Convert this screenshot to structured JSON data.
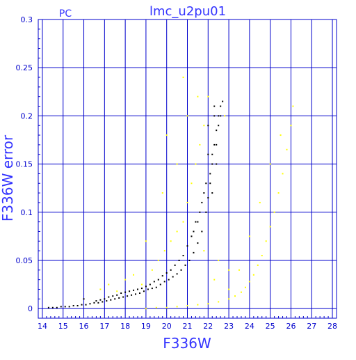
{
  "chart_data": {
    "type": "scatter",
    "title": "lmc_u2pu01",
    "corner_label": "PC",
    "xlabel": "F336W",
    "ylabel": "F336W error",
    "xlim": [
      13.8,
      28.2
    ],
    "ylim": [
      -0.01,
      0.3
    ],
    "x_ticks": [
      "14",
      "15",
      "16",
      "17",
      "18",
      "19",
      "20",
      "21",
      "22",
      "23",
      "24",
      "25",
      "26",
      "27",
      "28"
    ],
    "y_ticks": [
      "0",
      "0.05",
      "0.1",
      "0.15",
      "0.2",
      "0.25",
      "0.3"
    ],
    "grid": true,
    "colors": {
      "axes": "#0000cc",
      "grid": "#0000cc",
      "text": "#3333ff",
      "black_series": "#000000",
      "yellow_series": "#ffff00"
    },
    "series": [
      {
        "color": "#000000",
        "points": [
          [
            14.3,
            0.001
          ],
          [
            14.5,
            0.001
          ],
          [
            14.7,
            0.001
          ],
          [
            14.9,
            0.002
          ],
          [
            15.1,
            0.002
          ],
          [
            15.3,
            0.002
          ],
          [
            15.5,
            0.003
          ],
          [
            15.7,
            0.003
          ],
          [
            15.9,
            0.004
          ],
          [
            16.0,
            0.01
          ],
          [
            16.1,
            0.004
          ],
          [
            16.3,
            0.005
          ],
          [
            16.5,
            0.006
          ],
          [
            16.7,
            0.006
          ],
          [
            16.9,
            0.007
          ],
          [
            17.1,
            0.008
          ],
          [
            17.3,
            0.009
          ],
          [
            17.5,
            0.01
          ],
          [
            17.7,
            0.011
          ],
          [
            17.9,
            0.012
          ],
          [
            18.1,
            0.013
          ],
          [
            18.3,
            0.014
          ],
          [
            18.5,
            0.015
          ],
          [
            18.7,
            0.016
          ],
          [
            18.9,
            0.018
          ],
          [
            19.1,
            0.02
          ],
          [
            19.3,
            0.021
          ],
          [
            19.5,
            0.022
          ],
          [
            19.7,
            0.025
          ],
          [
            19.9,
            0.028
          ],
          [
            20.1,
            0.03
          ],
          [
            20.3,
            0.033
          ],
          [
            20.5,
            0.036
          ],
          [
            20.7,
            0.04
          ],
          [
            20.9,
            0.045
          ],
          [
            21.1,
            0.05
          ],
          [
            21.3,
            0.058
          ],
          [
            21.5,
            0.068
          ],
          [
            21.7,
            0.08
          ],
          [
            21.9,
            0.1
          ],
          [
            22.0,
            0.115
          ],
          [
            22.1,
            0.13
          ],
          [
            22.2,
            0.15
          ],
          [
            22.3,
            0.17
          ],
          [
            22.4,
            0.185
          ],
          [
            22.5,
            0.2
          ],
          [
            22.6,
            0.21
          ],
          [
            22.7,
            0.215
          ],
          [
            22.3,
            0.2
          ],
          [
            22.0,
            0.19
          ],
          [
            21.8,
            0.12
          ],
          [
            21.6,
            0.1
          ],
          [
            21.4,
            0.09
          ],
          [
            21.2,
            0.075
          ],
          [
            21.0,
            0.065
          ],
          [
            20.8,
            0.055
          ],
          [
            20.6,
            0.05
          ],
          [
            20.4,
            0.045
          ],
          [
            20.2,
            0.04
          ],
          [
            20.0,
            0.037
          ],
          [
            19.8,
            0.034
          ],
          [
            19.6,
            0.03
          ],
          [
            19.4,
            0.028
          ],
          [
            19.2,
            0.025
          ],
          [
            19.0,
            0.023
          ],
          [
            18.8,
            0.021
          ],
          [
            18.6,
            0.02
          ],
          [
            18.4,
            0.019
          ],
          [
            18.2,
            0.018
          ],
          [
            18.0,
            0.017
          ],
          [
            17.8,
            0.016
          ],
          [
            17.6,
            0.014
          ],
          [
            17.4,
            0.013
          ],
          [
            17.2,
            0.012
          ],
          [
            17.0,
            0.01
          ],
          [
            16.8,
            0.009
          ],
          [
            16.6,
            0.008
          ],
          [
            22.2,
            0.16
          ],
          [
            22.4,
            0.17
          ],
          [
            22.5,
            0.19
          ],
          [
            22.1,
            0.14
          ],
          [
            21.9,
            0.13
          ],
          [
            22.0,
            0.16
          ],
          [
            22.3,
            0.21
          ],
          [
            22.6,
            0.2
          ],
          [
            22.4,
            0.15
          ],
          [
            22.2,
            0.12
          ],
          [
            21.7,
            0.11
          ],
          [
            21.5,
            0.09
          ],
          [
            21.3,
            0.08
          ]
        ]
      },
      {
        "color": "#ffff00",
        "points": [
          [
            16.8,
            0.02
          ],
          [
            17.2,
            0.025
          ],
          [
            17.6,
            0.018
          ],
          [
            18.0,
            0.03
          ],
          [
            18.4,
            0.035
          ],
          [
            18.8,
            0.025
          ],
          [
            19.0,
            0.07
          ],
          [
            19.3,
            0.04
          ],
          [
            19.6,
            0.05
          ],
          [
            19.9,
            0.06
          ],
          [
            20.2,
            0.07
          ],
          [
            20.5,
            0.08
          ],
          [
            20.8,
            0.09
          ],
          [
            21.0,
            0.11
          ],
          [
            21.2,
            0.13
          ],
          [
            21.4,
            0.15
          ],
          [
            21.6,
            0.17
          ],
          [
            21.8,
            0.19
          ],
          [
            20.0,
            0.18
          ],
          [
            21.0,
            0.2
          ],
          [
            19.0,
            0.0
          ],
          [
            19.5,
            0.001
          ],
          [
            20.0,
            0.001
          ],
          [
            20.5,
            0.002
          ],
          [
            21.0,
            0.003
          ],
          [
            21.5,
            0.004
          ],
          [
            22.0,
            0.005
          ],
          [
            22.5,
            0.007
          ],
          [
            23.0,
            0.01
          ],
          [
            23.3,
            0.013
          ],
          [
            23.6,
            0.017
          ],
          [
            23.8,
            0.022
          ],
          [
            24.0,
            0.028
          ],
          [
            24.2,
            0.035
          ],
          [
            24.4,
            0.045
          ],
          [
            24.6,
            0.055
          ],
          [
            24.8,
            0.07
          ],
          [
            25.0,
            0.085
          ],
          [
            25.2,
            0.1
          ],
          [
            25.4,
            0.12
          ],
          [
            25.6,
            0.14
          ],
          [
            25.8,
            0.165
          ],
          [
            26.0,
            0.19
          ],
          [
            26.1,
            0.21
          ],
          [
            25.5,
            0.18
          ],
          [
            25.0,
            0.15
          ],
          [
            24.5,
            0.11
          ],
          [
            24.0,
            0.075
          ],
          [
            23.5,
            0.04
          ],
          [
            23.0,
            0.02
          ],
          [
            22.0,
            0.22
          ],
          [
            22.8,
            0.2
          ],
          [
            20.8,
            0.24
          ],
          [
            21.5,
            0.22
          ],
          [
            19.8,
            0.12
          ],
          [
            20.5,
            0.15
          ],
          [
            22.5,
            0.05
          ],
          [
            23.0,
            0.04
          ],
          [
            22.3,
            0.03
          ],
          [
            21.8,
            0.06
          ]
        ]
      }
    ]
  }
}
